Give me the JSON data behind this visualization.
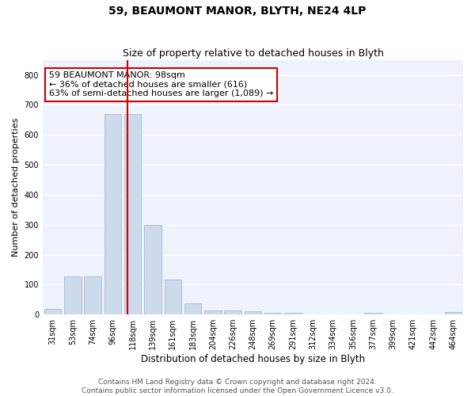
{
  "title": "59, BEAUMONT MANOR, BLYTH, NE24 4LP",
  "subtitle": "Size of property relative to detached houses in Blyth",
  "xlabel": "Distribution of detached houses by size in Blyth",
  "ylabel": "Number of detached properties",
  "categories": [
    "31sqm",
    "53sqm",
    "74sqm",
    "96sqm",
    "118sqm",
    "139sqm",
    "161sqm",
    "183sqm",
    "204sqm",
    "226sqm",
    "248sqm",
    "269sqm",
    "291sqm",
    "312sqm",
    "334sqm",
    "356sqm",
    "377sqm",
    "399sqm",
    "421sqm",
    "442sqm",
    "464sqm"
  ],
  "values": [
    18,
    127,
    127,
    670,
    670,
    300,
    118,
    37,
    15,
    13,
    10,
    5,
    5,
    0,
    0,
    0,
    5,
    0,
    0,
    0,
    8
  ],
  "bar_color": "#ccdaec",
  "bar_edge_color": "#aab8cc",
  "property_line_x": 3.72,
  "property_line_color": "#cc0000",
  "annotation_text": "59 BEAUMONT MANOR: 98sqm\n← 36% of detached houses are smaller (616)\n63% of semi-detached houses are larger (1,089) →",
  "annotation_box_color": "#cc0000",
  "ylim": [
    0,
    850
  ],
  "yticks": [
    0,
    100,
    200,
    300,
    400,
    500,
    600,
    700,
    800
  ],
  "background_color": "#edf2fb",
  "grid_color": "#ffffff",
  "footer": "Contains HM Land Registry data © Crown copyright and database right 2024.\nContains public sector information licensed under the Open Government Licence v3.0.",
  "title_fontsize": 10,
  "subtitle_fontsize": 9,
  "xlabel_fontsize": 8.5,
  "ylabel_fontsize": 8,
  "tick_fontsize": 7,
  "annotation_fontsize": 8,
  "footer_fontsize": 6.5
}
